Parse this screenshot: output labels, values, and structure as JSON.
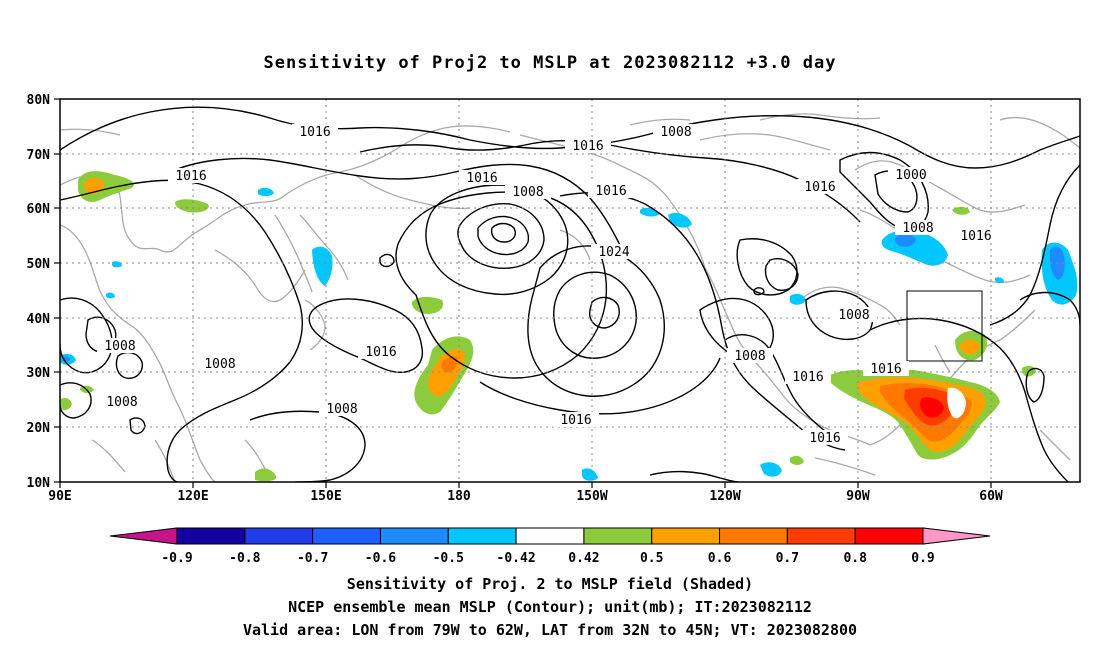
{
  "title": "Sensitivity of Proj2 to MSLP at 2023082112 +3.0 day",
  "map": {
    "lat_labels": [
      "80N",
      "70N",
      "60N",
      "50N",
      "40N",
      "30N",
      "20N",
      "10N"
    ],
    "lon_labels": [
      "90E",
      "120E",
      "150E",
      "180",
      "150W",
      "120W",
      "90W",
      "60W"
    ],
    "contour_labels": [
      {
        "id": "c1016_a",
        "text": "1016"
      },
      {
        "id": "c1008_a",
        "text": "1008"
      },
      {
        "id": "c1016_b",
        "text": "1016"
      },
      {
        "id": "c1016_c",
        "text": "1016"
      },
      {
        "id": "c1008_b",
        "text": "1008"
      },
      {
        "id": "c1016_d",
        "text": "1016"
      },
      {
        "id": "c1016_e",
        "text": "1016"
      },
      {
        "id": "c1000",
        "text": "1000"
      },
      {
        "id": "c1008_c",
        "text": "1008"
      },
      {
        "id": "c1016_f",
        "text": "1016"
      },
      {
        "id": "c1024",
        "text": "1024"
      },
      {
        "id": "c1008_d",
        "text": "1008"
      },
      {
        "id": "c1008_e",
        "text": "1008"
      },
      {
        "id": "c1008_f",
        "text": "1008"
      },
      {
        "id": "c1016_g",
        "text": "1016"
      },
      {
        "id": "c1008_g",
        "text": "1008"
      },
      {
        "id": "c1008_h",
        "text": "1008"
      },
      {
        "id": "c1016_h",
        "text": "1016"
      },
      {
        "id": "c1016_i",
        "text": "1016"
      },
      {
        "id": "c1016_j",
        "text": "1016"
      },
      {
        "id": "c1016_k",
        "text": "1016"
      },
      {
        "id": "c1008_i",
        "text": "1008"
      },
      {
        "id": "c1016_l",
        "text": "1016"
      }
    ]
  },
  "colorbar": {
    "labels": [
      "-0.9",
      "-0.8",
      "-0.7",
      "-0.6",
      "-0.5",
      "-0.42",
      "0.42",
      "0.5",
      "0.6",
      "0.7",
      "0.8",
      "0.9"
    ],
    "colors": [
      "#1400a0",
      "#1f3ce8",
      "#1e60ff",
      "#1e8cff",
      "#00c8ff",
      "#ffffff",
      "#8ccc3c",
      "#ffa000",
      "#ff7800",
      "#ff3c00",
      "#ff0000"
    ],
    "low_end_color": "#c8148c",
    "high_end_color": "#ff96c8"
  },
  "footer": {
    "line1": "Sensitivity of Proj. 2 to MSLP field (Shaded)",
    "line2": "NCEP ensemble mean MSLP (Contour); unit(mb); IT:2023082112",
    "line3": "Valid area: LON from 79W to 62W, LAT from 32N to 45N; VT: 2023082800"
  }
}
